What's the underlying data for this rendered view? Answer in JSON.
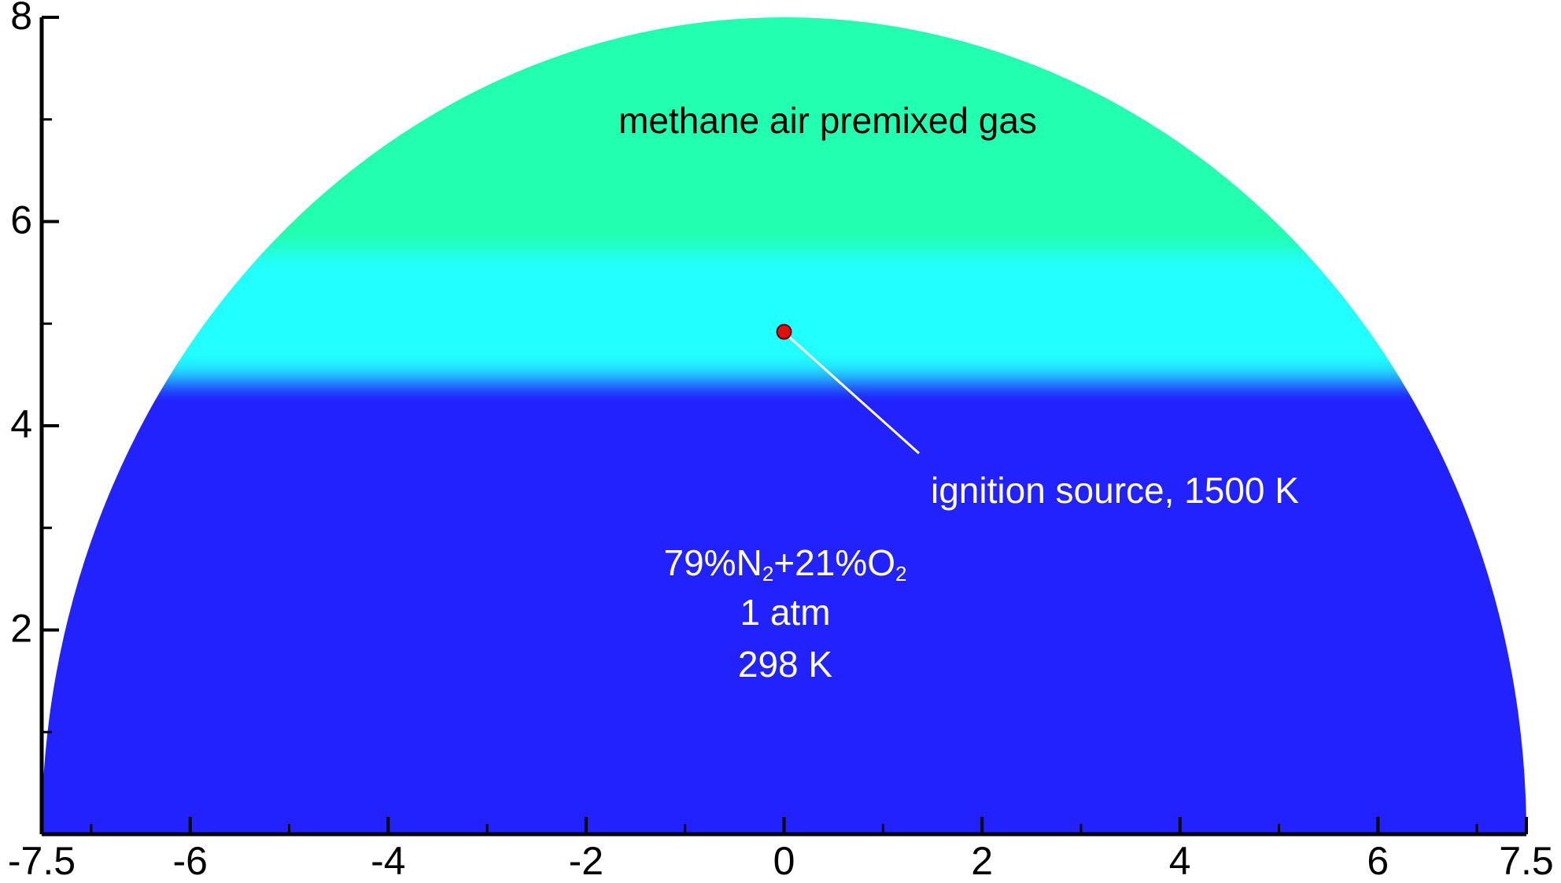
{
  "chart_data": {
    "type": "domain",
    "xlim": [
      -7.5,
      7.5
    ],
    "ylim": [
      0,
      8
    ],
    "xticks": [
      -7.5,
      -6,
      -4,
      -2,
      0,
      2,
      4,
      6,
      7.5
    ],
    "xminorticks": [
      -7,
      -5,
      -3,
      -1,
      1,
      3,
      5,
      7
    ],
    "yticks": [
      2,
      4,
      6,
      8
    ],
    "yminorticks": [
      1,
      3,
      5,
      7
    ],
    "domain": {
      "rx": 7.5,
      "ry": 8
    },
    "layers": [
      {
        "from": 0,
        "to": 4.5,
        "color": "#2121ff"
      },
      {
        "from": 4.5,
        "to": 5.7,
        "color": "#21ffff"
      },
      {
        "from": 5.7,
        "to": 8,
        "color": "#21ffb0"
      }
    ],
    "ignition": {
      "x": 0,
      "y": 4.92,
      "color": "#e01010"
    },
    "annotations": {
      "gas": "methane air premixed gas",
      "ignition": "ignition source, 1500 K",
      "mixture": [
        "79%N",
        "2",
        "+21%O",
        "2"
      ],
      "pressure": "1 atm",
      "temperature": "298 K"
    }
  }
}
